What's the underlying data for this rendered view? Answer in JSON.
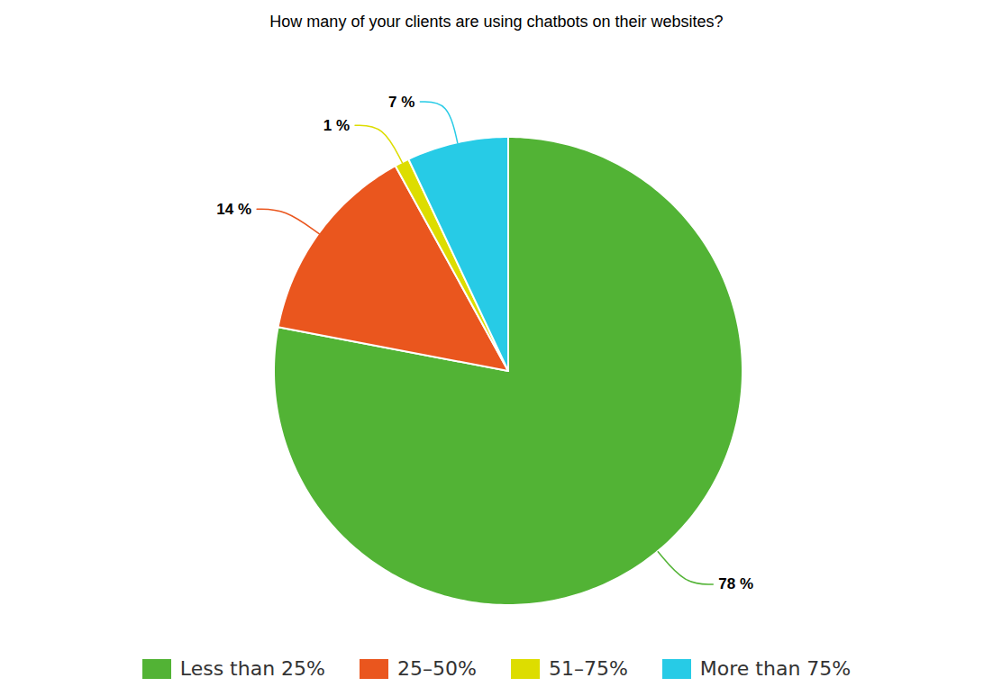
{
  "chart_data": {
    "type": "pie",
    "title": "How many of your clients are using chatbots on their websites?",
    "categories": [
      "Less than 25%",
      "25–50%",
      "51–75%",
      "More than 75%"
    ],
    "values": [
      78,
      14,
      1,
      7
    ],
    "value_labels": [
      "78 %",
      "14 %",
      "1 %",
      "7 %"
    ],
    "colors": [
      "#52b335",
      "#ea561e",
      "#dddd00",
      "#27cbe6"
    ],
    "data_labels": true,
    "legend": "bottom",
    "tick_labels": false
  }
}
